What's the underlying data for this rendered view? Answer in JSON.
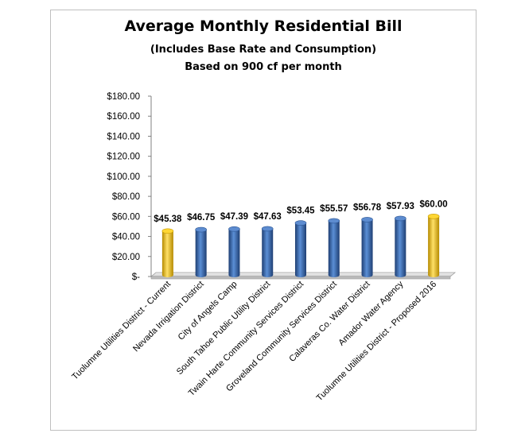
{
  "chart_data": {
    "type": "bar",
    "title": "Average Monthly Residential Bill",
    "subtitle": "(Includes Base Rate and Consumption)",
    "subtitle2": "Based on 900 cf per month",
    "categories": [
      "Tuolumne Utilities District - Current",
      "Nevada Irrigation District",
      "City of Angels Camp",
      "South Tahoe Public Utility District",
      "Twain Harte Community Services District",
      "Groveland Community Services District",
      "Calaveras Co. Water District",
      "Amador Water Agency",
      "Tuolumne Utilities District - Proposed 2016"
    ],
    "values": [
      45.38,
      46.75,
      47.39,
      47.63,
      53.45,
      55.57,
      56.78,
      57.93,
      60.0
    ],
    "value_labels": [
      "$45.38",
      "$46.75",
      "$47.39",
      "$47.63",
      "$53.45",
      "$55.57",
      "$56.78",
      "$57.93",
      "$60.00"
    ],
    "bold_labels": [
      0,
      8
    ],
    "bar_colors": [
      "#f5c518",
      "#3a6cb4",
      "#3a6cb4",
      "#3a6cb4",
      "#3a6cb4",
      "#3a6cb4",
      "#3a6cb4",
      "#3a6cb4",
      "#f5c518"
    ],
    "ylim": [
      0,
      180
    ],
    "yticks": [
      0,
      20,
      40,
      60,
      80,
      100,
      120,
      140,
      160,
      180
    ],
    "ytick_labels": [
      "$-",
      "$20.00",
      "$40.00",
      "$60.00",
      "$80.00",
      "$100.00",
      "$120.00",
      "$140.00",
      "$160.00",
      "$180.00"
    ],
    "grid": false,
    "legend": "none"
  }
}
